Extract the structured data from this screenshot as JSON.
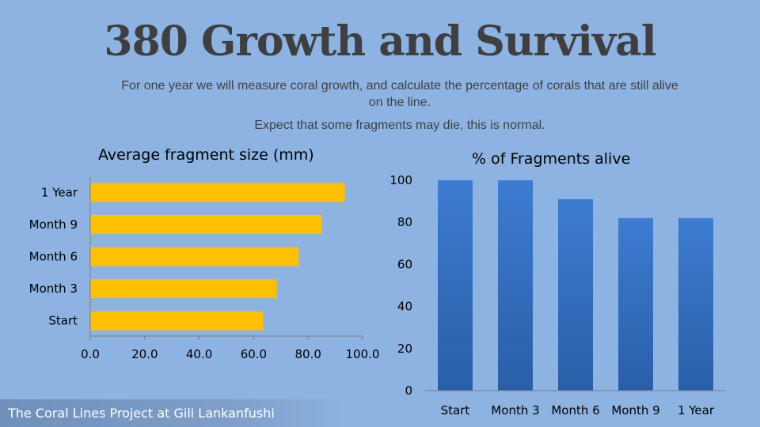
{
  "title": "380 Growth and Survival",
  "subtitle_line1": "For one year we will measure coral growth, and calculate the percentage of corals that are still alive on the line.",
  "subtitle_line2": "Expect that some fragments may die, this is normal.",
  "footer": "The Coral Lines Project at Gili Lankanfushi",
  "colors": {
    "background": "#8db3e2",
    "bar_fill": "#ffc000",
    "column_top": "#3d7cd0",
    "column_bottom": "#2a5ea8"
  },
  "chart_data": [
    {
      "type": "bar",
      "orientation": "horizontal",
      "title": "Average fragment size (mm)",
      "categories": [
        "Start",
        "Month 3",
        "Month 6",
        "Month 9",
        "1 Year"
      ],
      "values": [
        63.5,
        68.5,
        76.5,
        85,
        93.5
      ],
      "xlim": [
        0,
        100
      ],
      "ticks": [
        "0.0",
        "20.0",
        "40.0",
        "60.0",
        "80.0",
        "100.0"
      ],
      "tick_values": [
        0,
        20,
        40,
        60,
        80,
        100
      ],
      "grid": false,
      "legend": "none"
    },
    {
      "type": "bar",
      "orientation": "vertical",
      "title": "% of Fragments alive",
      "categories": [
        "Start",
        "Month 3",
        "Month 6",
        "Month 9",
        "1 Year"
      ],
      "values": [
        100,
        100,
        91,
        82,
        82
      ],
      "ylim": [
        0,
        100
      ],
      "ticks": [
        "0",
        "20",
        "40",
        "60",
        "80",
        "100"
      ],
      "tick_values": [
        0,
        20,
        40,
        60,
        80,
        100
      ],
      "grid": false,
      "legend": "none"
    }
  ]
}
